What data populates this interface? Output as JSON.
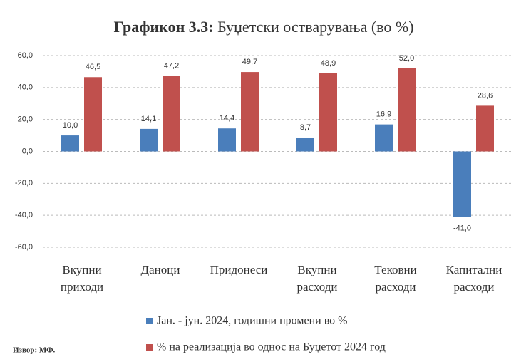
{
  "chart_data": {
    "type": "bar",
    "title_label": "Графикон 3.3:",
    "title": "Буџетски остварувања (во %)",
    "categories": [
      [
        "Вкупни",
        "приходи"
      ],
      [
        "Даноци"
      ],
      [
        "Придонеси"
      ],
      [
        "Вкупни",
        "расходи"
      ],
      [
        "Тековни",
        "расходи"
      ],
      [
        "Капитални",
        "расходи"
      ]
    ],
    "series": [
      {
        "name": "Јан. - јун. 2024, годишни промени во %",
        "color": "#4a7ebb",
        "values": [
          10.0,
          14.1,
          14.4,
          8.7,
          16.9,
          -41.0
        ],
        "value_labels": [
          "10,0",
          "14,1",
          "14,4",
          "8,7",
          "16,9",
          "-41,0"
        ]
      },
      {
        "name": "% на реализација во однос на Буџетот 2024 год",
        "color": "#c0504d",
        "values": [
          46.5,
          47.2,
          49.7,
          48.9,
          52.0,
          28.6
        ],
        "value_labels": [
          "46,5",
          "47,2",
          "49,7",
          "48,9",
          "52,0",
          "28,6"
        ]
      }
    ],
    "ylim": [
      -60,
      60
    ],
    "yticks": [
      {
        "value": 60,
        "label": "60,0"
      },
      {
        "value": 40,
        "label": "40,0"
      },
      {
        "value": 20,
        "label": "20,0"
      },
      {
        "value": 0,
        "label": "0,0"
      },
      {
        "value": -20,
        "label": "-20,0"
      },
      {
        "value": -40,
        "label": "-40,0"
      },
      {
        "value": -60,
        "label": "-60,0"
      }
    ],
    "grid": true,
    "source": "Извор: МФ."
  }
}
